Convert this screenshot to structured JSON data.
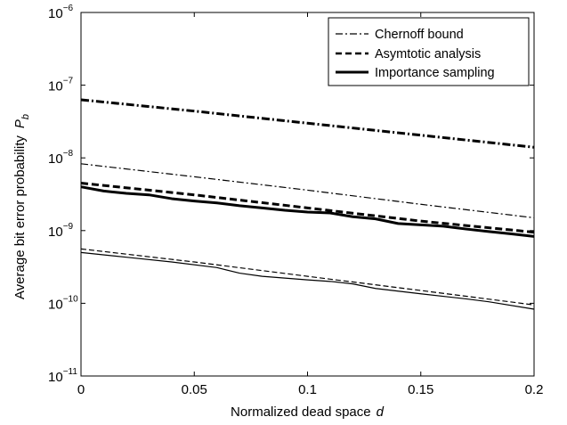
{
  "chart_data": {
    "type": "line",
    "xlabel": "Normalized dead space",
    "xlabel_symbol": "d",
    "ylabel": "Average bit error probability",
    "ylabel_symbol": "P",
    "ylabel_subscript": "b",
    "xlim": [
      0,
      0.2
    ],
    "ylim": [
      1e-11,
      1e-06
    ],
    "y_scale": "log",
    "grid": false,
    "legend_position": "top-right",
    "x_ticks": [
      0,
      0.05,
      0.1,
      0.15,
      0.2
    ],
    "x_tick_labels": [
      "0",
      "0.05",
      "0.1",
      "0.15",
      "0.2"
    ],
    "y_tick_exponents": [
      -11,
      -10,
      -9,
      -8,
      -7,
      -6
    ],
    "y_tick_base": "10",
    "legend": [
      {
        "name": "Chernoff bound",
        "style": "dashdot"
      },
      {
        "name": "Asymtotic analysis",
        "style": "dashed"
      },
      {
        "name": "Importance sampling",
        "style": "solid"
      }
    ],
    "series": [
      {
        "style": "dashdot",
        "weight": "thick",
        "x": [
          0,
          0.05,
          0.1,
          0.15,
          0.2
        ],
        "y": [
          6.3e-08,
          4.4e-08,
          3e-08,
          2.05e-08,
          1.4e-08
        ]
      },
      {
        "style": "dashed",
        "weight": "thick",
        "x": [
          0,
          0.05,
          0.1,
          0.15,
          0.2
        ],
        "y": [
          4.5e-09,
          3.1e-09,
          2.05e-09,
          1.35e-09,
          9.5e-10
        ]
      },
      {
        "style": "solid",
        "weight": "thick",
        "x": [
          0,
          0.01,
          0.02,
          0.03,
          0.04,
          0.05,
          0.06,
          0.07,
          0.08,
          0.09,
          0.1,
          0.11,
          0.12,
          0.13,
          0.14,
          0.15,
          0.16,
          0.17,
          0.18,
          0.19,
          0.2
        ],
        "y": [
          4e-09,
          3.5e-09,
          3.25e-09,
          3.1e-09,
          2.75e-09,
          2.55e-09,
          2.4e-09,
          2.2e-09,
          2.05e-09,
          1.9e-09,
          1.8e-09,
          1.75e-09,
          1.55e-09,
          1.45e-09,
          1.25e-09,
          1.2e-09,
          1.15e-09,
          1.05e-09,
          9.7e-10,
          9e-10,
          8.3e-10
        ]
      },
      {
        "style": "dashdot",
        "weight": "thin",
        "x": [
          0,
          0.05,
          0.1,
          0.15,
          0.2
        ],
        "y": [
          8.3e-09,
          5.5e-09,
          3.6e-09,
          2.3e-09,
          1.5e-09
        ]
      },
      {
        "style": "dashed",
        "weight": "thin",
        "x": [
          0,
          0.05,
          0.1,
          0.15,
          0.2
        ],
        "y": [
          5.6e-10,
          3.7e-10,
          2.35e-10,
          1.5e-10,
          9.5e-11
        ]
      },
      {
        "style": "solid",
        "weight": "thin",
        "x": [
          0,
          0.02,
          0.04,
          0.06,
          0.07,
          0.08,
          0.1,
          0.11,
          0.12,
          0.13,
          0.15,
          0.17,
          0.18,
          0.2
        ],
        "y": [
          5e-10,
          4.3e-10,
          3.7e-10,
          3.1e-10,
          2.6e-10,
          2.35e-10,
          2.1e-10,
          2e-10,
          1.85e-10,
          1.6e-10,
          1.35e-10,
          1.15e-10,
          1.05e-10,
          8.3e-11
        ]
      }
    ]
  }
}
